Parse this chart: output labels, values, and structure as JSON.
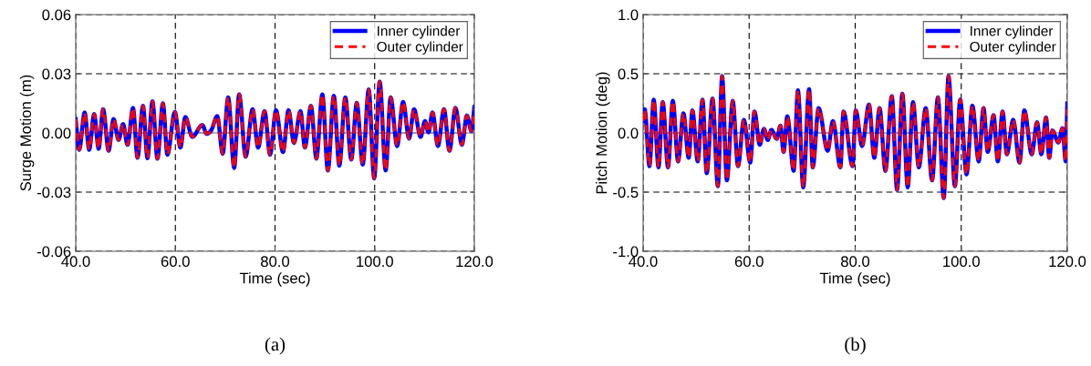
{
  "chart_data": [
    {
      "type": "line",
      "xlabel": "Time (sec)",
      "ylabel": "Surge Motion (m)",
      "xlim": [
        40,
        120
      ],
      "ylim": [
        -0.06,
        0.06
      ],
      "xticks": [
        {
          "value": 40,
          "label": "40.0"
        },
        {
          "value": 60,
          "label": "60.0"
        },
        {
          "value": 80,
          "label": "80.0"
        },
        {
          "value": 100,
          "label": "100.0"
        },
        {
          "value": 120,
          "label": "120.0"
        }
      ],
      "yticks": [
        {
          "value": -0.06,
          "label": "-0.06"
        },
        {
          "value": -0.03,
          "label": "-0.03"
        },
        {
          "value": 0,
          "label": "0.00"
        },
        {
          "value": 0.03,
          "label": "0.03"
        },
        {
          "value": 0.06,
          "label": "0.06"
        }
      ],
      "grid": true,
      "legend": "top right",
      "ref_lines": [
        {
          "axis": "y",
          "value": 0,
          "color": "#a0a0a0",
          "line_style": "solid"
        }
      ],
      "annotations": [
        "(a)"
      ],
      "x": [
        40,
        40.7,
        41.8,
        42.7,
        43.7,
        44.6,
        45.5,
        46.6,
        47.6,
        48.6,
        49.5,
        50.4,
        51.5,
        52.4,
        53.5,
        54.4,
        55.4,
        56.4,
        57.5,
        58.4,
        59.9,
        61.0,
        62.0,
        63.4,
        65.4,
        66.3,
        67.2,
        68.4,
        69.5,
        70.6,
        71.8,
        72.8,
        74.1,
        75.5,
        76.6,
        77.9,
        79.0,
        80.2,
        81.6,
        82.7,
        83.8,
        85.1,
        86.0,
        87.2,
        88.3,
        89.5,
        90.6,
        91.8,
        92.9,
        94.1,
        95.3,
        96.4,
        97.6,
        98.8,
        99.9,
        101.0,
        102.2,
        103.2,
        104.5,
        105.7,
        106.9,
        107.9,
        109.2,
        110.1,
        110.8,
        111.6,
        112.7,
        113.9,
        115.0,
        116.2,
        117.5,
        118.5,
        119.4,
        120
      ],
      "series": [
        {
          "name": "Inner cylinder",
          "color": "#0000ff",
          "line_style": "solid",
          "values": [
            0.007,
            -0.0085,
            0.0103,
            -0.0085,
            0.0095,
            -0.008,
            0.012,
            -0.009,
            0.007,
            -0.0035,
            0.0045,
            -0.006,
            0.0126,
            -0.0125,
            0.0137,
            -0.0128,
            0.016,
            -0.013,
            0.015,
            -0.011,
            0.0106,
            -0.0074,
            0.008,
            -0.002,
            0.004,
            -0.0005,
            0.0014,
            0.0085,
            -0.0105,
            0.018,
            -0.0177,
            0.0195,
            -0.012,
            0.012,
            -0.0074,
            0.011,
            -0.011,
            0.0115,
            -0.0097,
            0.0115,
            -0.005,
            0.011,
            -0.0074,
            0.0137,
            -0.013,
            0.0195,
            -0.019,
            0.0188,
            -0.0166,
            0.018,
            -0.0135,
            0.0152,
            -0.016,
            0.022,
            -0.023,
            0.026,
            -0.019,
            0.018,
            -0.0066,
            0.0157,
            -0.0028,
            0.012,
            -0.002,
            0.006,
            0.0003,
            0.0103,
            -0.0066,
            0.012,
            -0.009,
            0.0126,
            -0.006,
            0.0088,
            0.001,
            0.013
          ]
        },
        {
          "name": "Outer cylinder",
          "color": "#ff0000",
          "line_style": "dashed",
          "values": [
            0.007,
            -0.0085,
            0.0103,
            -0.0085,
            0.0095,
            -0.008,
            0.012,
            -0.009,
            0.007,
            -0.0035,
            0.0045,
            -0.006,
            0.0126,
            -0.0125,
            0.0137,
            -0.0128,
            0.016,
            -0.013,
            0.015,
            -0.011,
            0.0106,
            -0.0074,
            0.008,
            -0.002,
            0.004,
            -0.0005,
            0.0014,
            0.0085,
            -0.0105,
            0.018,
            -0.0177,
            0.0195,
            -0.012,
            0.012,
            -0.0074,
            0.011,
            -0.011,
            0.0115,
            -0.0097,
            0.0115,
            -0.005,
            0.011,
            -0.0074,
            0.0137,
            -0.013,
            0.0195,
            -0.019,
            0.0188,
            -0.0166,
            0.018,
            -0.0135,
            0.0152,
            -0.016,
            0.022,
            -0.023,
            0.026,
            -0.019,
            0.018,
            -0.0066,
            0.0157,
            -0.0028,
            0.012,
            -0.002,
            0.006,
            0.0003,
            0.0103,
            -0.0066,
            0.012,
            -0.009,
            0.0126,
            -0.006,
            0.0088,
            0.001,
            0.012
          ]
        }
      ]
    },
    {
      "type": "line",
      "xlabel": "Time (sec)",
      "ylabel": "Pitch Motion (deg)",
      "xlim": [
        40,
        120
      ],
      "ylim": [
        -1.0,
        1.0
      ],
      "xticks": [
        {
          "value": 40,
          "label": "40.0"
        },
        {
          "value": 60,
          "label": "60.0"
        },
        {
          "value": 80,
          "label": "80.0"
        },
        {
          "value": 100,
          "label": "100.0"
        },
        {
          "value": 120,
          "label": "120.0"
        }
      ],
      "yticks": [
        {
          "value": -1.0,
          "label": "-1.0"
        },
        {
          "value": -0.5,
          "label": "-0.5"
        },
        {
          "value": 0,
          "label": "0.0"
        },
        {
          "value": 0.5,
          "label": "0.5"
        },
        {
          "value": 1.0,
          "label": "1.0"
        }
      ],
      "grid": true,
      "legend": "top right",
      "ref_lines": [
        {
          "axis": "y",
          "value": 0,
          "color": "#a0a0a0",
          "line_style": "solid"
        }
      ],
      "annotations": [
        "(b)"
      ],
      "x": [
        40,
        40.3,
        41.2,
        42.0,
        42.9,
        43.7,
        44.7,
        45.6,
        46.6,
        47.6,
        48.6,
        49.3,
        50.3,
        51.2,
        52.0,
        53.1,
        54.1,
        54.9,
        55.8,
        56.9,
        57.9,
        59.0,
        60.2,
        61.0,
        62.0,
        62.8,
        63.5,
        64.2,
        65.2,
        65.9,
        66.5,
        67.2,
        68.4,
        69.2,
        70.2,
        71.3,
        72.0,
        73.1,
        74.8,
        75.8,
        77.2,
        77.8,
        79.5,
        80.1,
        81.3,
        82.6,
        83.6,
        84.6,
        85.7,
        86.9,
        87.9,
        88.9,
        89.9,
        90.9,
        92.0,
        93.3,
        94.5,
        95.6,
        96.7,
        97.6,
        98.8,
        99.8,
        101.0,
        102.1,
        103.3,
        104.2,
        105.0,
        106.1,
        106.9,
        107.8,
        108.6,
        109.8,
        111.0,
        111.9,
        113.3,
        114.3,
        115.1,
        116.0,
        116.6,
        117.2,
        118.3,
        119.1,
        119.7,
        120
      ],
      "series": [
        {
          "name": "Inner cylinder",
          "color": "#0000ff",
          "line_style": "solid",
          "values": [
            0.1,
            0.2,
            -0.28,
            0.28,
            -0.29,
            0.26,
            -0.29,
            0.27,
            -0.24,
            0.165,
            -0.21,
            0.19,
            -0.24,
            0.28,
            -0.34,
            0.29,
            -0.45,
            0.48,
            -0.4,
            0.27,
            -0.28,
            0.11,
            -0.25,
            0.18,
            -0.1,
            0.035,
            -0.06,
            0.026,
            -0.05,
            0.06,
            -0.16,
            0.14,
            -0.32,
            0.36,
            -0.46,
            0.37,
            -0.29,
            0.21,
            -0.15,
            0.1,
            -0.29,
            0.18,
            -0.28,
            0.19,
            -0.11,
            0.24,
            -0.21,
            0.21,
            -0.32,
            0.31,
            -0.48,
            0.33,
            -0.46,
            0.26,
            -0.29,
            0.21,
            -0.4,
            0.3,
            -0.55,
            0.48,
            -0.45,
            0.28,
            -0.35,
            0.23,
            -0.24,
            0.21,
            -0.16,
            0.15,
            -0.24,
            0.18,
            -0.18,
            0.11,
            -0.25,
            0.19,
            -0.18,
            0.09,
            -0.18,
            0.13,
            -0.21,
            0.02,
            -0.08,
            0.04,
            -0.24,
            0.25
          ]
        },
        {
          "name": "Outer cylinder",
          "color": "#ff0000",
          "line_style": "dashed",
          "values": [
            0.1,
            0.2,
            -0.28,
            0.28,
            -0.29,
            0.26,
            -0.29,
            0.27,
            -0.24,
            0.165,
            -0.21,
            0.19,
            -0.24,
            0.28,
            -0.34,
            0.29,
            -0.45,
            0.48,
            -0.4,
            0.27,
            -0.28,
            0.11,
            -0.25,
            0.18,
            -0.1,
            0.035,
            -0.06,
            0.026,
            -0.05,
            0.06,
            -0.16,
            0.14,
            -0.32,
            0.36,
            -0.46,
            0.37,
            -0.29,
            0.21,
            -0.15,
            0.1,
            -0.29,
            0.18,
            -0.28,
            0.19,
            -0.11,
            0.24,
            -0.21,
            0.21,
            -0.32,
            0.31,
            -0.48,
            0.33,
            -0.46,
            0.26,
            -0.29,
            0.21,
            -0.4,
            0.3,
            -0.55,
            0.48,
            -0.45,
            0.28,
            -0.35,
            0.23,
            -0.24,
            0.21,
            -0.16,
            0.15,
            -0.24,
            0.18,
            -0.18,
            0.11,
            -0.25,
            0.19,
            -0.18,
            0.09,
            -0.18,
            0.13,
            -0.21,
            0.02,
            -0.08,
            0.04,
            -0.24,
            0.2
          ]
        }
      ]
    }
  ]
}
